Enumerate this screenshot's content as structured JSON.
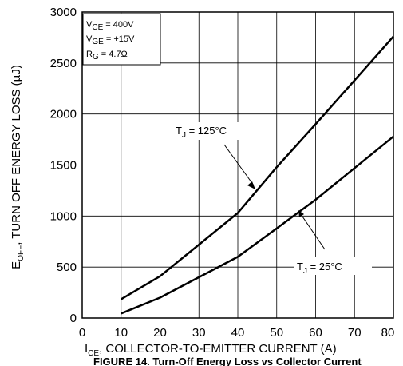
{
  "chart_data": {
    "type": "line",
    "caption": "FIGURE 14. Turn-Off Energy Loss vs Collector Current",
    "ylabel": {
      "main": "E",
      "sub": "OFF",
      "rest": ", TURN OFF ENERGY LOSS (µJ)"
    },
    "xlabel": {
      "main": "I",
      "sub": "CE",
      "rest": ", COLLECTOR-TO-EMITTER CURRENT (A)"
    },
    "xlim": [
      0,
      80
    ],
    "ylim": [
      0,
      3000
    ],
    "x_ticks": [
      0,
      10,
      20,
      30,
      40,
      50,
      60,
      70,
      80
    ],
    "y_ticks": [
      0,
      500,
      1000,
      1500,
      2000,
      2500,
      3000
    ],
    "grid": true,
    "conditions": [
      {
        "main": "V",
        "sub": "CE",
        "rest": " = 400V"
      },
      {
        "main": "V",
        "sub": "GE",
        "rest": " = +15V"
      },
      {
        "main": "R",
        "sub": "G",
        "rest": " = 4.7Ω"
      }
    ],
    "series": [
      {
        "label_main": "T",
        "label_sub": "J",
        "label_rest": " = 125°C",
        "x": [
          10,
          20,
          30,
          40,
          50,
          60,
          70,
          80
        ],
        "y": [
          185,
          410,
          720,
          1030,
          1480,
          1900,
          2330,
          2760
        ]
      },
      {
        "label_main": "T",
        "label_sub": "J",
        "label_rest": " = 25°C",
        "x": [
          10,
          20,
          30,
          40,
          50,
          60,
          70,
          80
        ],
        "y": [
          45,
          200,
          400,
          600,
          880,
          1160,
          1470,
          1780
        ]
      }
    ]
  }
}
